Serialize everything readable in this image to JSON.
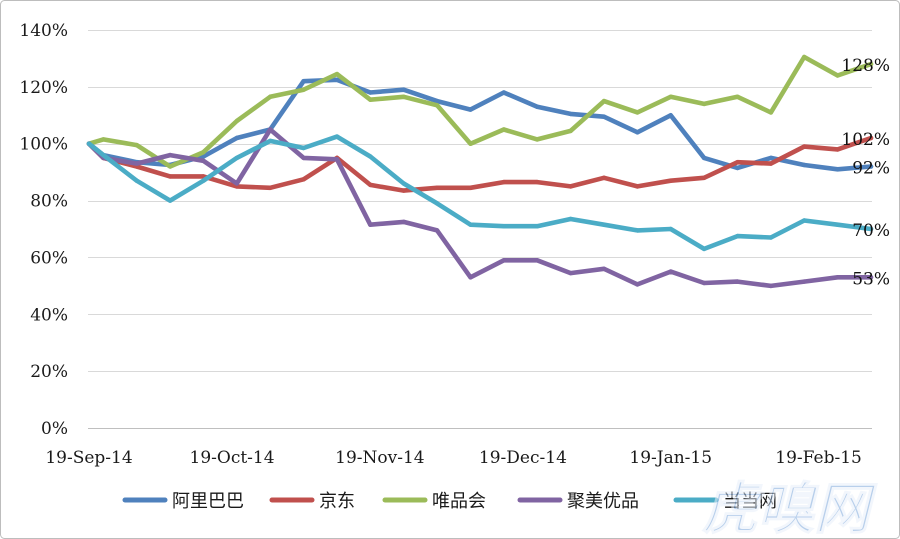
{
  "chart_data": {
    "type": "line",
    "x": [
      "2014-09-19",
      "2014-09-22",
      "2014-09-29",
      "2014-10-06",
      "2014-10-13",
      "2014-10-20",
      "2014-10-27",
      "2014-11-03",
      "2014-11-10",
      "2014-11-17",
      "2014-11-24",
      "2014-12-01",
      "2014-12-08",
      "2014-12-15",
      "2014-12-22",
      "2014-12-29",
      "2015-01-05",
      "2015-01-12",
      "2015-01-19",
      "2015-01-26",
      "2015-02-02",
      "2015-02-09",
      "2015-02-16",
      "2015-02-23",
      "2015-03-02"
    ],
    "xlim": [
      "2014-09-19",
      "2015-03-02"
    ],
    "xticks": [
      {
        "date": "2014-09-19",
        "label": "19-Sep-14"
      },
      {
        "date": "2014-10-19",
        "label": "19-Oct-14"
      },
      {
        "date": "2014-11-19",
        "label": "19-Nov-14"
      },
      {
        "date": "2014-12-19",
        "label": "19-Dec-14"
      },
      {
        "date": "2015-01-19",
        "label": "19-Jan-15"
      },
      {
        "date": "2015-02-19",
        "label": "19-Feb-15"
      }
    ],
    "ylim": [
      0,
      140
    ],
    "yticks": [
      {
        "value": 0,
        "label": "0%"
      },
      {
        "value": 20,
        "label": "20%"
      },
      {
        "value": 40,
        "label": "40%"
      },
      {
        "value": 60,
        "label": "60%"
      },
      {
        "value": 80,
        "label": "80%"
      },
      {
        "value": 100,
        "label": "100%"
      },
      {
        "value": 120,
        "label": "120%"
      },
      {
        "value": 140,
        "label": "140%"
      }
    ],
    "grid": "horizontal",
    "legend": "bottom",
    "series": [
      {
        "name": "阿里巴巴",
        "color": "#4F81BD",
        "values": [
          100,
          96,
          93.5,
          92.5,
          95.5,
          102,
          105,
          122,
          122.5,
          118,
          119,
          115,
          112,
          118,
          113,
          110.5,
          109.5,
          104,
          110,
          95,
          91.5,
          95,
          92.5,
          91,
          92
        ],
        "end_label": "92%"
      },
      {
        "name": "京东",
        "color": "#C0504D",
        "values": [
          100,
          95,
          92,
          88.5,
          88.5,
          85,
          84.5,
          87.5,
          95,
          85.5,
          83.5,
          84.5,
          84.5,
          86.5,
          86.5,
          85,
          88,
          85,
          87,
          88,
          93.5,
          93,
          99,
          98,
          102
        ],
        "end_label": "102%"
      },
      {
        "name": "唯品会",
        "color": "#9BBB59",
        "values": [
          100,
          101.5,
          99.5,
          92,
          97,
          108,
          116.5,
          119,
          124.5,
          115.5,
          116.5,
          113.5,
          100,
          105,
          101.5,
          104.5,
          115,
          111,
          116.5,
          114,
          116.5,
          111,
          130.5,
          124,
          128
        ],
        "end_label": "128%"
      },
      {
        "name": "聚美优品",
        "color": "#8064A2",
        "values": [
          100,
          95,
          93,
          96,
          94,
          86,
          105,
          95,
          94.5,
          71.5,
          72.5,
          69.5,
          53,
          59,
          59,
          54.5,
          56,
          50.5,
          55,
          51,
          51.5,
          50,
          51.5,
          53,
          53
        ],
        "end_label": "53%"
      },
      {
        "name": "当当网",
        "color": "#4BACC6",
        "values": [
          100,
          96,
          87,
          80,
          87,
          95,
          101,
          98.5,
          102.5,
          95.5,
          86,
          79,
          71.5,
          71,
          71,
          73.5,
          71.5,
          69.5,
          70,
          63,
          67.5,
          67,
          73,
          71.5,
          70
        ],
        "end_label": "70%"
      }
    ]
  },
  "watermark": {
    "text": "虎嗅网",
    "color": "#7FA9DC"
  }
}
